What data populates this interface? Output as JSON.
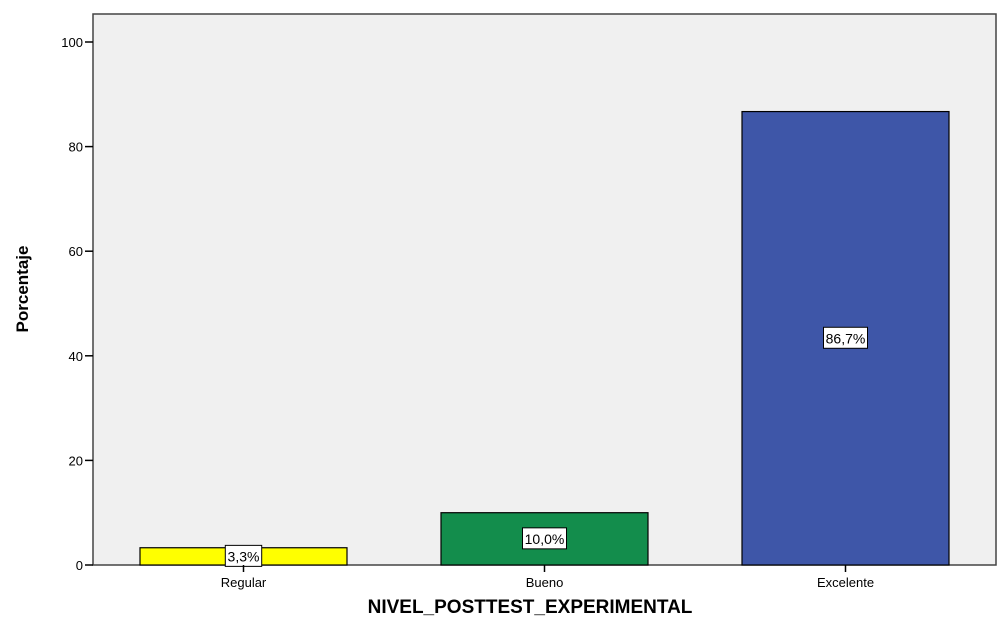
{
  "chart_data": {
    "type": "bar",
    "categories": [
      "Regular",
      "Bueno",
      "Excelente"
    ],
    "values": [
      3.3,
      10.0,
      86.7
    ],
    "data_labels": [
      "3,3%",
      "10,0%",
      "86,7%"
    ],
    "colors": [
      "#ffff00",
      "#138d4c",
      "#3e56a8"
    ],
    "xlabel": "NIVEL_POSTTEST_EXPERIMENTAL",
    "ylabel": "Porcentaje",
    "ylim": [
      0,
      100
    ],
    "yticks": [
      0,
      20,
      40,
      60,
      80,
      100
    ],
    "plot_background": "#f0f0f0",
    "grid": false
  }
}
